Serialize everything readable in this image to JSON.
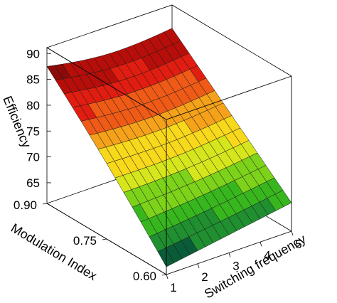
{
  "chart_data": {
    "type": "surface",
    "title": "",
    "zlabel": "Efficiency",
    "ylabel": "Modulation Index",
    "xlabel": "Switching frequency",
    "z_ticks": [
      "65",
      "70",
      "75",
      "80",
      "85",
      "90"
    ],
    "y_ticks": [
      "0.60",
      "0.75",
      "0.90"
    ],
    "x_ticks": [
      "1",
      "2",
      "3",
      "4",
      "5"
    ],
    "xlim": [
      1,
      5
    ],
    "ylim": [
      0.6,
      0.9
    ],
    "zlim": [
      61,
      91
    ],
    "grid": true,
    "colormap": [
      "#0a5c38",
      "#1f8f30",
      "#38b61e",
      "#7dd21a",
      "#d6e61c",
      "#f7d81b",
      "#f5a21a",
      "#ef5a16",
      "#e01d10",
      "#b70e0a",
      "#8c0a08"
    ],
    "surface_corners": [
      {
        "switching_frequency": 1,
        "modulation_index": 0.9,
        "efficiency": 87.5
      },
      {
        "switching_frequency": 5,
        "modulation_index": 0.9,
        "efficiency": 86.5
      },
      {
        "switching_frequency": 1,
        "modulation_index": 0.6,
        "efficiency": 62.5
      },
      {
        "switching_frequency": 5,
        "modulation_index": 0.6,
        "efficiency": 66.5
      }
    ]
  }
}
